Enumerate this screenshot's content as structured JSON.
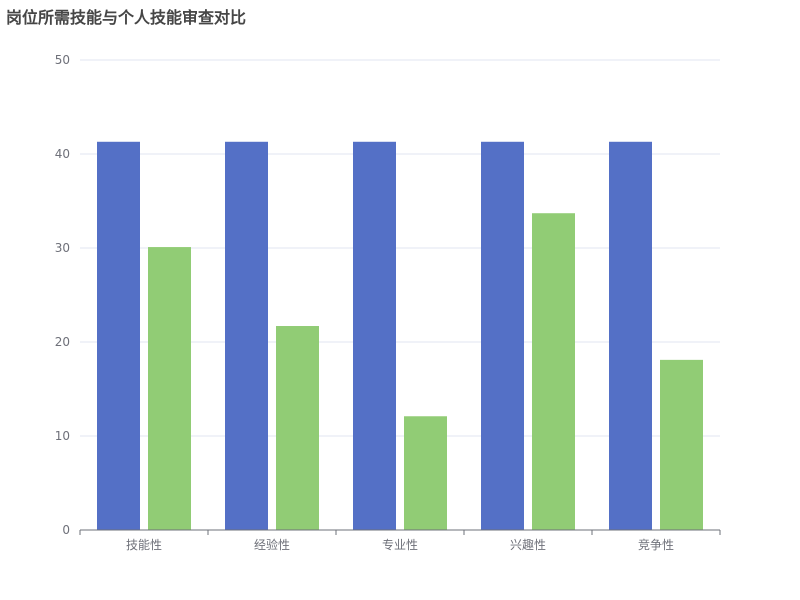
{
  "chart_data": {
    "type": "bar",
    "title": "岗位所需技能与个人技能审查对比",
    "categories": [
      "技能性",
      "经验性",
      "专业性",
      "兴趣性",
      "竞争性"
    ],
    "series": [
      {
        "values": [
          41.3,
          41.3,
          41.3,
          41.3,
          41.3
        ],
        "color": "#5470c6"
      },
      {
        "values": [
          30.1,
          21.7,
          12.1,
          33.7,
          18.1
        ],
        "color": "#91cc75"
      }
    ],
    "yticks": [
      0,
      10,
      20,
      30,
      40,
      50
    ],
    "ylim": [
      0,
      50
    ],
    "grid": true,
    "legend": "none"
  }
}
